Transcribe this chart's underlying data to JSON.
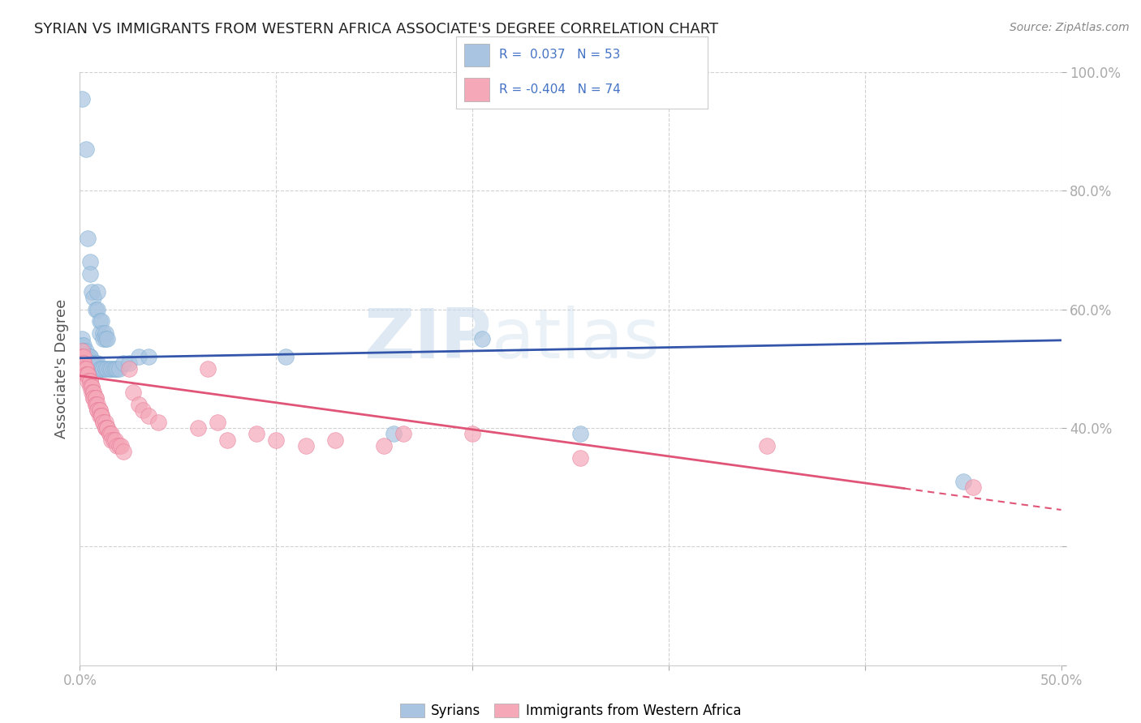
{
  "title": "SYRIAN VS IMMIGRANTS FROM WESTERN AFRICA ASSOCIATE'S DEGREE CORRELATION CHART",
  "source": "Source: ZipAtlas.com",
  "ylabel": "Associate's Degree",
  "legend_labels": [
    "Syrians",
    "Immigrants from Western Africa"
  ],
  "r_syrian": 0.037,
  "n_syrian": 53,
  "r_western_africa": -0.404,
  "n_western_africa": 74,
  "syrian_color": "#a8c4e0",
  "syrian_edge_color": "#7aafd4",
  "western_africa_color": "#f4a8b8",
  "western_africa_edge_color": "#e87a99",
  "trend_syrian_color": "#3355aa",
  "trend_western_africa_color": "#e05577",
  "watermark_zip": "ZIP",
  "watermark_atlas": "atlas",
  "xlim": [
    0.0,
    0.5
  ],
  "ylim": [
    0.0,
    1.0
  ],
  "xticks": [
    0.0,
    0.1,
    0.2,
    0.3,
    0.4,
    0.5
  ],
  "yticks": [
    0.0,
    0.2,
    0.4,
    0.6,
    0.8,
    1.0
  ],
  "background_color": "#ffffff",
  "grid_color": "#cccccc",
  "title_color": "#222222",
  "axis_label_color": "#4472c4",
  "r_value_color": "#4472c4",
  "syrian_scatter": [
    [
      0.001,
      0.955
    ],
    [
      0.003,
      0.87
    ],
    [
      0.004,
      0.72
    ],
    [
      0.005,
      0.68
    ],
    [
      0.005,
      0.66
    ],
    [
      0.006,
      0.63
    ],
    [
      0.007,
      0.62
    ],
    [
      0.008,
      0.6
    ],
    [
      0.009,
      0.6
    ],
    [
      0.009,
      0.63
    ],
    [
      0.01,
      0.58
    ],
    [
      0.01,
      0.56
    ],
    [
      0.011,
      0.58
    ],
    [
      0.012,
      0.56
    ],
    [
      0.012,
      0.55
    ],
    [
      0.013,
      0.56
    ],
    [
      0.013,
      0.55
    ],
    [
      0.014,
      0.55
    ],
    [
      0.001,
      0.55
    ],
    [
      0.001,
      0.54
    ],
    [
      0.002,
      0.54
    ],
    [
      0.002,
      0.53
    ],
    [
      0.002,
      0.53
    ],
    [
      0.003,
      0.53
    ],
    [
      0.003,
      0.52
    ],
    [
      0.004,
      0.52
    ],
    [
      0.004,
      0.52
    ],
    [
      0.005,
      0.52
    ],
    [
      0.005,
      0.52
    ],
    [
      0.006,
      0.51
    ],
    [
      0.007,
      0.51
    ],
    [
      0.008,
      0.51
    ],
    [
      0.009,
      0.51
    ],
    [
      0.01,
      0.5
    ],
    [
      0.011,
      0.5
    ],
    [
      0.012,
      0.5
    ],
    [
      0.013,
      0.5
    ],
    [
      0.014,
      0.5
    ],
    [
      0.015,
      0.5
    ],
    [
      0.016,
      0.5
    ],
    [
      0.017,
      0.5
    ],
    [
      0.018,
      0.5
    ],
    [
      0.019,
      0.5
    ],
    [
      0.02,
      0.5
    ],
    [
      0.022,
      0.51
    ],
    [
      0.025,
      0.51
    ],
    [
      0.03,
      0.52
    ],
    [
      0.035,
      0.52
    ],
    [
      0.105,
      0.52
    ],
    [
      0.16,
      0.39
    ],
    [
      0.205,
      0.55
    ],
    [
      0.255,
      0.39
    ],
    [
      0.45,
      0.31
    ]
  ],
  "western_africa_scatter": [
    [
      0.001,
      0.53
    ],
    [
      0.001,
      0.52
    ],
    [
      0.001,
      0.52
    ],
    [
      0.002,
      0.52
    ],
    [
      0.002,
      0.51
    ],
    [
      0.002,
      0.51
    ],
    [
      0.002,
      0.5
    ],
    [
      0.003,
      0.5
    ],
    [
      0.003,
      0.5
    ],
    [
      0.003,
      0.49
    ],
    [
      0.003,
      0.49
    ],
    [
      0.004,
      0.49
    ],
    [
      0.004,
      0.49
    ],
    [
      0.004,
      0.48
    ],
    [
      0.005,
      0.48
    ],
    [
      0.005,
      0.48
    ],
    [
      0.005,
      0.47
    ],
    [
      0.006,
      0.47
    ],
    [
      0.006,
      0.47
    ],
    [
      0.006,
      0.46
    ],
    [
      0.007,
      0.46
    ],
    [
      0.007,
      0.46
    ],
    [
      0.007,
      0.45
    ],
    [
      0.007,
      0.45
    ],
    [
      0.008,
      0.45
    ],
    [
      0.008,
      0.45
    ],
    [
      0.008,
      0.44
    ],
    [
      0.008,
      0.44
    ],
    [
      0.009,
      0.44
    ],
    [
      0.009,
      0.43
    ],
    [
      0.009,
      0.43
    ],
    [
      0.01,
      0.43
    ],
    [
      0.01,
      0.43
    ],
    [
      0.01,
      0.42
    ],
    [
      0.011,
      0.42
    ],
    [
      0.011,
      0.42
    ],
    [
      0.011,
      0.42
    ],
    [
      0.012,
      0.41
    ],
    [
      0.012,
      0.41
    ],
    [
      0.013,
      0.41
    ],
    [
      0.013,
      0.4
    ],
    [
      0.013,
      0.4
    ],
    [
      0.014,
      0.4
    ],
    [
      0.014,
      0.4
    ],
    [
      0.015,
      0.39
    ],
    [
      0.015,
      0.39
    ],
    [
      0.016,
      0.39
    ],
    [
      0.016,
      0.38
    ],
    [
      0.017,
      0.38
    ],
    [
      0.018,
      0.38
    ],
    [
      0.019,
      0.37
    ],
    [
      0.02,
      0.37
    ],
    [
      0.021,
      0.37
    ],
    [
      0.022,
      0.36
    ],
    [
      0.025,
      0.5
    ],
    [
      0.027,
      0.46
    ],
    [
      0.03,
      0.44
    ],
    [
      0.032,
      0.43
    ],
    [
      0.035,
      0.42
    ],
    [
      0.04,
      0.41
    ],
    [
      0.06,
      0.4
    ],
    [
      0.065,
      0.5
    ],
    [
      0.07,
      0.41
    ],
    [
      0.075,
      0.38
    ],
    [
      0.09,
      0.39
    ],
    [
      0.1,
      0.38
    ],
    [
      0.115,
      0.37
    ],
    [
      0.13,
      0.38
    ],
    [
      0.155,
      0.37
    ],
    [
      0.165,
      0.39
    ],
    [
      0.2,
      0.39
    ],
    [
      0.255,
      0.35
    ],
    [
      0.35,
      0.37
    ],
    [
      0.455,
      0.3
    ]
  ]
}
